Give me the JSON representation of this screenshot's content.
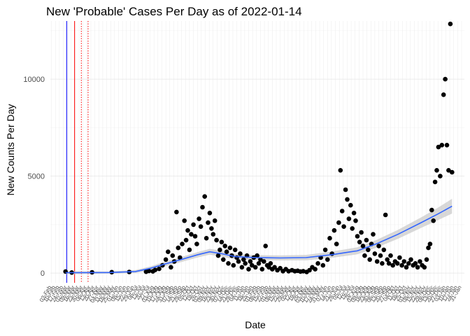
{
  "chart_data": {
    "type": "scatter",
    "title": "New 'Probable' Cases Per Day as of 2022-01-14",
    "xlabel": "Date",
    "ylabel": "New Counts Per Day",
    "x_range": [
      "2020-02-01",
      "2022-02-05"
    ],
    "ylim": [
      -500,
      13000
    ],
    "y_ticks": [
      0,
      5000,
      10000
    ],
    "x_tick_format": "dd-Mon",
    "x_tick_interval_days": 7,
    "x_tick_rotation_deg": -60,
    "grid": true,
    "vertical_lines": [
      {
        "date": "2020-03-01",
        "color": "#0000ff",
        "style": "solid"
      },
      {
        "date": "2020-03-15",
        "color": "#ff0000",
        "style": "solid"
      },
      {
        "date": "2020-03-27",
        "color": "#ff0000",
        "style": "dotted"
      },
      {
        "date": "2020-04-08",
        "color": "#ff0000",
        "style": "dotted"
      }
    ],
    "series": [
      {
        "kind": "points",
        "color": "#000000",
        "points": [
          [
            "2020-02-28",
            80
          ],
          [
            "2020-03-10",
            30
          ],
          [
            "2020-04-15",
            40
          ],
          [
            "2020-05-20",
            50
          ],
          [
            "2020-06-20",
            60
          ],
          [
            "2020-07-20",
            70
          ],
          [
            "2020-07-25",
            110
          ],
          [
            "2020-08-01",
            90
          ],
          [
            "2020-08-05",
            160
          ],
          [
            "2020-08-12",
            220
          ],
          [
            "2020-08-18",
            400
          ],
          [
            "2020-08-24",
            700
          ],
          [
            "2020-08-28",
            1100
          ],
          [
            "2020-09-02",
            300
          ],
          [
            "2020-09-05",
            900
          ],
          [
            "2020-09-08",
            600
          ],
          [
            "2020-09-12",
            3150
          ],
          [
            "2020-09-15",
            1300
          ],
          [
            "2020-09-18",
            800
          ],
          [
            "2020-09-22",
            1500
          ],
          [
            "2020-09-26",
            2700
          ],
          [
            "2020-09-29",
            1700
          ],
          [
            "2020-10-02",
            2200
          ],
          [
            "2020-10-05",
            1200
          ],
          [
            "2020-10-08",
            2000
          ],
          [
            "2020-10-12",
            2500
          ],
          [
            "2020-10-15",
            1900
          ],
          [
            "2020-10-18",
            1500
          ],
          [
            "2020-10-22",
            2800
          ],
          [
            "2020-10-25",
            2400
          ],
          [
            "2020-10-28",
            3400
          ],
          [
            "2020-11-01",
            3950
          ],
          [
            "2020-11-04",
            1800
          ],
          [
            "2020-11-07",
            2600
          ],
          [
            "2020-11-10",
            3100
          ],
          [
            "2020-11-13",
            2300
          ],
          [
            "2020-11-16",
            2000
          ],
          [
            "2020-11-19",
            2700
          ],
          [
            "2020-11-22",
            1700
          ],
          [
            "2020-11-25",
            900
          ],
          [
            "2020-11-28",
            1200
          ],
          [
            "2020-12-01",
            1600
          ],
          [
            "2020-12-04",
            700
          ],
          [
            "2020-12-07",
            1400
          ],
          [
            "2020-12-10",
            1100
          ],
          [
            "2020-12-13",
            500
          ],
          [
            "2020-12-16",
            1300
          ],
          [
            "2020-12-19",
            900
          ],
          [
            "2020-12-22",
            400
          ],
          [
            "2020-12-25",
            1200
          ],
          [
            "2020-12-28",
            800
          ],
          [
            "2020-12-31",
            600
          ],
          [
            "2021-01-03",
            1000
          ],
          [
            "2021-01-06",
            300
          ],
          [
            "2021-01-09",
            700
          ],
          [
            "2021-01-12",
            500
          ],
          [
            "2021-01-15",
            900
          ],
          [
            "2021-01-18",
            200
          ],
          [
            "2021-01-21",
            600
          ],
          [
            "2021-01-24",
            400
          ],
          [
            "2021-01-27",
            800
          ],
          [
            "2021-01-30",
            300
          ],
          [
            "2021-02-02",
            900
          ],
          [
            "2021-02-05",
            500
          ],
          [
            "2021-02-08",
            700
          ],
          [
            "2021-02-11",
            200
          ],
          [
            "2021-02-14",
            600
          ],
          [
            "2021-02-17",
            1400
          ],
          [
            "2021-02-20",
            400
          ],
          [
            "2021-02-23",
            300
          ],
          [
            "2021-02-26",
            500
          ],
          [
            "2021-03-01",
            200
          ],
          [
            "2021-03-05",
            300
          ],
          [
            "2021-03-10",
            150
          ],
          [
            "2021-03-15",
            250
          ],
          [
            "2021-03-20",
            100
          ],
          [
            "2021-03-25",
            200
          ],
          [
            "2021-03-30",
            100
          ],
          [
            "2021-04-05",
            150
          ],
          [
            "2021-04-10",
            100
          ],
          [
            "2021-04-15",
            120
          ],
          [
            "2021-04-20",
            80
          ],
          [
            "2021-04-25",
            100
          ],
          [
            "2021-05-01",
            60
          ],
          [
            "2021-05-06",
            150
          ],
          [
            "2021-05-11",
            300
          ],
          [
            "2021-05-16",
            200
          ],
          [
            "2021-05-21",
            500
          ],
          [
            "2021-05-26",
            800
          ],
          [
            "2021-05-30",
            400
          ],
          [
            "2021-06-03",
            1200
          ],
          [
            "2021-06-07",
            700
          ],
          [
            "2021-06-11",
            1800
          ],
          [
            "2021-06-15",
            1000
          ],
          [
            "2021-06-19",
            2200
          ],
          [
            "2021-06-23",
            1500
          ],
          [
            "2021-06-27",
            2600
          ],
          [
            "2021-06-30",
            5300
          ],
          [
            "2021-07-03",
            3200
          ],
          [
            "2021-07-06",
            2400
          ],
          [
            "2021-07-09",
            4300
          ],
          [
            "2021-07-12",
            3800
          ],
          [
            "2021-07-15",
            2800
          ],
          [
            "2021-07-18",
            3500
          ],
          [
            "2021-07-21",
            2300
          ],
          [
            "2021-07-24",
            3100
          ],
          [
            "2021-07-27",
            2700
          ],
          [
            "2021-07-30",
            1900
          ],
          [
            "2021-08-03",
            1600
          ],
          [
            "2021-08-06",
            2100
          ],
          [
            "2021-08-09",
            1400
          ],
          [
            "2021-08-12",
            900
          ],
          [
            "2021-08-15",
            1700
          ],
          [
            "2021-08-18",
            1200
          ],
          [
            "2021-08-21",
            700
          ],
          [
            "2021-08-24",
            1500
          ],
          [
            "2021-08-27",
            2000
          ],
          [
            "2021-08-30",
            1000
          ],
          [
            "2021-09-03",
            600
          ],
          [
            "2021-09-06",
            1400
          ],
          [
            "2021-09-09",
            900
          ],
          [
            "2021-09-12",
            500
          ],
          [
            "2021-09-15",
            1200
          ],
          [
            "2021-09-18",
            3000
          ],
          [
            "2021-09-21",
            700
          ],
          [
            "2021-09-24",
            500
          ],
          [
            "2021-09-27",
            900
          ],
          [
            "2021-10-01",
            400
          ],
          [
            "2021-10-05",
            600
          ],
          [
            "2021-10-09",
            500
          ],
          [
            "2021-10-13",
            800
          ],
          [
            "2021-10-17",
            400
          ],
          [
            "2021-10-21",
            600
          ],
          [
            "2021-10-25",
            300
          ],
          [
            "2021-10-29",
            500
          ],
          [
            "2021-11-02",
            700
          ],
          [
            "2021-11-06",
            400
          ],
          [
            "2021-11-10",
            500
          ],
          [
            "2021-11-14",
            300
          ],
          [
            "2021-11-18",
            600
          ],
          [
            "2021-11-22",
            400
          ],
          [
            "2021-11-26",
            300
          ],
          [
            "2021-11-30",
            700
          ],
          [
            "2021-12-03",
            1300
          ],
          [
            "2021-12-06",
            1500
          ],
          [
            "2021-12-09",
            3250
          ],
          [
            "2021-12-12",
            2700
          ],
          [
            "2021-12-15",
            4700
          ],
          [
            "2021-12-18",
            5300
          ],
          [
            "2021-12-21",
            6500
          ],
          [
            "2021-12-24",
            5000
          ],
          [
            "2021-12-27",
            6600
          ],
          [
            "2021-12-30",
            9200
          ],
          [
            "2022-01-02",
            10000
          ],
          [
            "2022-01-05",
            6600
          ],
          [
            "2022-01-08",
            5300
          ],
          [
            "2022-01-11",
            12850
          ],
          [
            "2022-01-14",
            5200
          ]
        ]
      },
      {
        "kind": "smooth",
        "color": "#3366ff",
        "band_color": "#c8c8c8",
        "points": [
          [
            "2020-02-28",
            20
          ],
          [
            "2020-05-15",
            30
          ],
          [
            "2020-07-01",
            80
          ],
          [
            "2020-07-28",
            250
          ],
          [
            "2020-08-20",
            450
          ],
          [
            "2020-09-20",
            700
          ],
          [
            "2020-10-20",
            950
          ],
          [
            "2020-11-10",
            1100
          ],
          [
            "2020-12-01",
            1000
          ],
          [
            "2020-12-25",
            850
          ],
          [
            "2021-02-01",
            800
          ],
          [
            "2021-03-15",
            780
          ],
          [
            "2021-04-30",
            800
          ],
          [
            "2021-06-15",
            950
          ],
          [
            "2021-07-30",
            1150
          ],
          [
            "2021-09-01",
            1500
          ],
          [
            "2021-10-10",
            2000
          ],
          [
            "2021-11-20",
            2600
          ],
          [
            "2021-12-20",
            3050
          ],
          [
            "2022-01-14",
            3450
          ]
        ],
        "band_halfwidth": [
          80,
          60,
          80,
          100,
          120,
          130,
          140,
          150,
          150,
          140,
          130,
          130,
          140,
          160,
          180,
          200,
          230,
          270,
          320,
          380
        ]
      }
    ]
  }
}
